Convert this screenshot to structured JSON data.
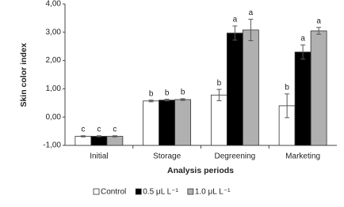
{
  "chart_data": {
    "type": "bar",
    "ylabel": "Skin color index",
    "xlabel": "Analysis periods",
    "categories": [
      "Initial",
      "Storage",
      "Degreening",
      "Marketing"
    ],
    "series": [
      {
        "name": "Control",
        "color": "#ffffff",
        "values": [
          -0.68,
          0.57,
          0.78,
          0.4
        ],
        "errors": [
          0.02,
          0.03,
          0.2,
          0.42
        ],
        "letters": [
          "c",
          "b",
          "b",
          "b"
        ]
      },
      {
        "name": "0.5 μL L⁻¹",
        "color": "#000000",
        "values": [
          -0.68,
          0.6,
          2.97,
          2.3
        ],
        "errors": [
          0.02,
          0.03,
          0.25,
          0.25
        ],
        "letters": [
          "c",
          "b",
          "a",
          "a"
        ]
      },
      {
        "name": "1.0 μL L⁻¹",
        "color": "#b0b0b0",
        "values": [
          -0.68,
          0.62,
          3.08,
          3.05
        ],
        "errors": [
          0.02,
          0.03,
          0.38,
          0.12
        ],
        "letters": [
          "c",
          "b",
          "a",
          "a"
        ]
      }
    ],
    "ylim": [
      -1,
      4
    ],
    "yticks": [
      {
        "value": -1,
        "label": "-1,00"
      },
      {
        "value": 0,
        "label": "0,00"
      },
      {
        "value": 1,
        "label": "1,00"
      },
      {
        "value": 2,
        "label": "2,00"
      },
      {
        "value": 3,
        "label": "3,00"
      },
      {
        "value": 4,
        "label": "4,00"
      }
    ],
    "grid": false
  }
}
